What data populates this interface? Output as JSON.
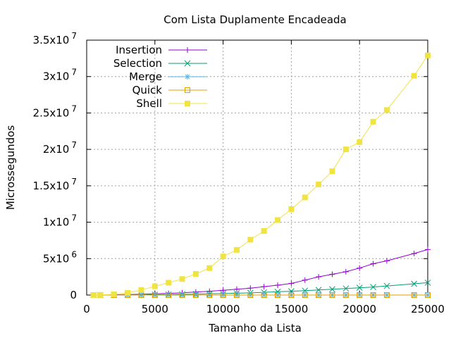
{
  "chart_data": {
    "type": "line",
    "title": "Com Lista Duplamente Encadeada",
    "xlabel": "Tamanho da Lista",
    "ylabel": "Microssegundos",
    "xlim": [
      0,
      25000
    ],
    "ylim": [
      0,
      35000000
    ],
    "xticks": [
      {
        "value": 0,
        "label": "0"
      },
      {
        "value": 5000,
        "label": "5000"
      },
      {
        "value": 10000,
        "label": "10000"
      },
      {
        "value": 15000,
        "label": "15000"
      },
      {
        "value": 20000,
        "label": "20000"
      },
      {
        "value": 25000,
        "label": "25000"
      }
    ],
    "yticks": [
      {
        "value": 0,
        "base": "0",
        "exp": ""
      },
      {
        "value": 5000000,
        "base": "5x10",
        "exp": "6"
      },
      {
        "value": 10000000,
        "base": "1x10",
        "exp": "7"
      },
      {
        "value": 15000000,
        "base": "1.5x10",
        "exp": "7"
      },
      {
        "value": 20000000,
        "base": "2x10",
        "exp": "7"
      },
      {
        "value": 25000000,
        "base": "2.5x10",
        "exp": "7"
      },
      {
        "value": 30000000,
        "base": "3x10",
        "exp": "7"
      },
      {
        "value": 35000000,
        "base": "3.5x10",
        "exp": "7"
      }
    ],
    "grid": true,
    "legend_position": "top-left",
    "x": [
      500,
      1000,
      2000,
      3000,
      4000,
      5000,
      6000,
      7000,
      8000,
      9000,
      10000,
      11000,
      12000,
      13000,
      14000,
      15000,
      16000,
      17000,
      18000,
      19000,
      20000,
      21000,
      22000,
      24000,
      25000
    ],
    "series": [
      {
        "name": "Insertion",
        "color": "#9400d3",
        "marker": "plus",
        "values": [
          0,
          10000,
          40000,
          70000,
          110000,
          160000,
          230000,
          310000,
          410000,
          520000,
          650000,
          800000,
          950000,
          1150000,
          1350000,
          1600000,
          2050000,
          2500000,
          2850000,
          3200000,
          3700000,
          4300000,
          4700000,
          5700000,
          6250000
        ]
      },
      {
        "name": "Selection",
        "color": "#009e73",
        "marker": "cross",
        "values": [
          0,
          0,
          10000,
          20000,
          30000,
          50000,
          70000,
          100000,
          130000,
          160000,
          200000,
          250000,
          300000,
          380000,
          450000,
          520000,
          600000,
          700000,
          800000,
          900000,
          1000000,
          1100000,
          1250000,
          1550000,
          1700000
        ]
      },
      {
        "name": "Merge",
        "color": "#56b4e9",
        "marker": "star",
        "values": [
          0,
          0,
          0,
          0,
          0,
          0,
          0,
          0,
          0,
          0,
          0,
          0,
          0,
          0,
          0,
          0,
          0,
          0,
          0,
          0,
          0,
          0,
          0,
          0,
          0
        ]
      },
      {
        "name": "Quick",
        "color": "#e69f00",
        "marker": "square-open",
        "values": [
          0,
          0,
          0,
          0,
          0,
          0,
          0,
          0,
          0,
          0,
          0,
          0,
          0,
          0,
          0,
          0,
          0,
          0,
          0,
          0,
          0,
          0,
          0,
          0,
          0
        ]
      },
      {
        "name": "Shell",
        "color": "#f0e442",
        "marker": "square-filled",
        "values": [
          0,
          20000,
          100000,
          300000,
          700000,
          1200000,
          1700000,
          2200000,
          2900000,
          3700000,
          5300000,
          6200000,
          7600000,
          8800000,
          10300000,
          11800000,
          13400000,
          15200000,
          17000000,
          20000000,
          21000000,
          23800000,
          25400000,
          30100000,
          32900000
        ]
      }
    ]
  }
}
